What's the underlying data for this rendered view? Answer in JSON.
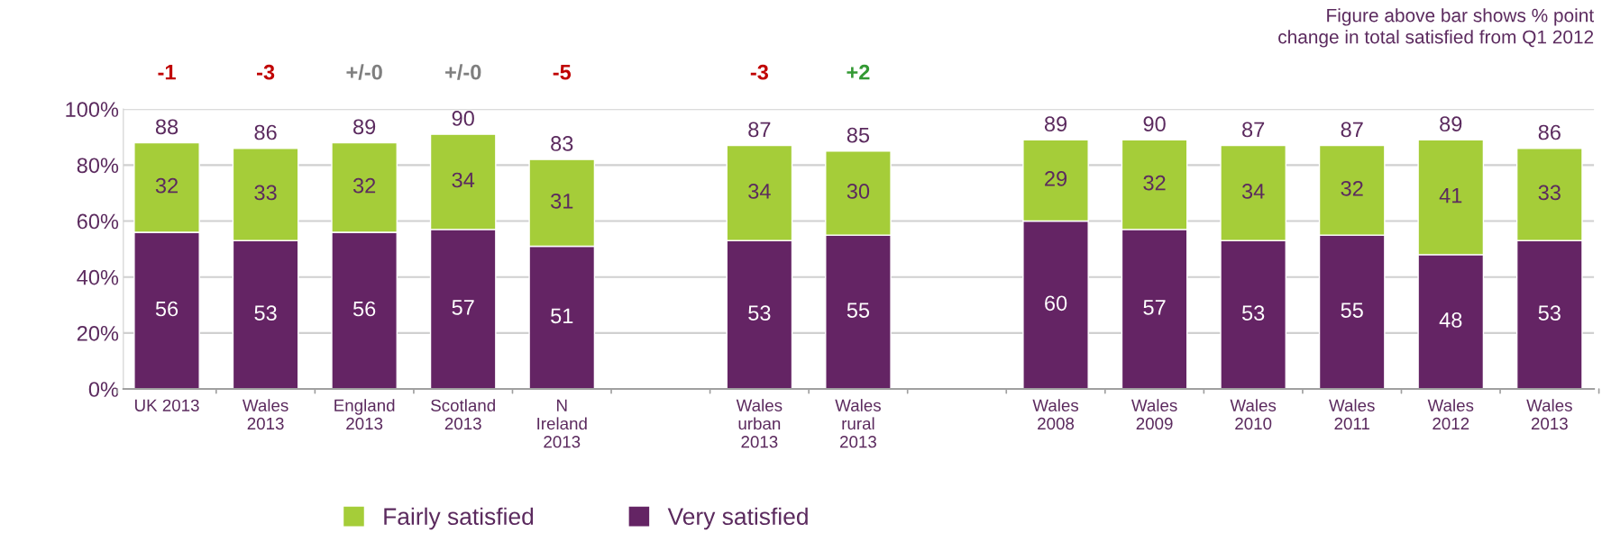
{
  "chart_data": {
    "type": "bar",
    "stacked": true,
    "data_labels": true,
    "categories": [
      "UK 2013",
      "Wales\n2013",
      "England\n2013",
      "Scotland\n2013",
      "N\nIreland\n2013",
      null,
      "Wales\nurban\n2013",
      "Wales\nrural\n2013",
      null,
      "Wales\n2008",
      "Wales\n2009",
      "Wales\n2010",
      "Wales\n2011",
      "Wales\n2012",
      "Wales\n2013"
    ],
    "series": [
      {
        "name": "Very satisfied",
        "color": "#642464",
        "values": [
          56,
          53,
          56,
          57,
          51,
          null,
          53,
          55,
          null,
          60,
          57,
          53,
          55,
          48,
          53
        ]
      },
      {
        "name": "Fairly satisfied",
        "color": "#a5cd39",
        "values": [
          32,
          33,
          32,
          34,
          31,
          null,
          34,
          30,
          null,
          29,
          32,
          34,
          32,
          41,
          33
        ]
      }
    ],
    "totals": [
      "88",
      "86",
      "89",
      "90",
      "83",
      null,
      "87",
      "85",
      null,
      "89",
      "90",
      "87",
      "87",
      "89",
      "86"
    ],
    "ylim": [
      0,
      100
    ],
    "yticks": [
      {
        "value": 0,
        "label": "0%"
      },
      {
        "value": 20,
        "label": "20%"
      },
      {
        "value": 40,
        "label": "40%"
      },
      {
        "value": 60,
        "label": "60%"
      },
      {
        "value": 80,
        "label": "80%"
      },
      {
        "value": 100,
        "label": "100%"
      }
    ],
    "grid": "y",
    "legend": "bottom",
    "annotations": [
      "-1",
      "-3",
      "+/-0",
      "+/-0",
      "-5",
      "-3",
      "+2",
      "Figure above bar shows % point\nchange in total satisfied from Q1 2012"
    ]
  }
}
